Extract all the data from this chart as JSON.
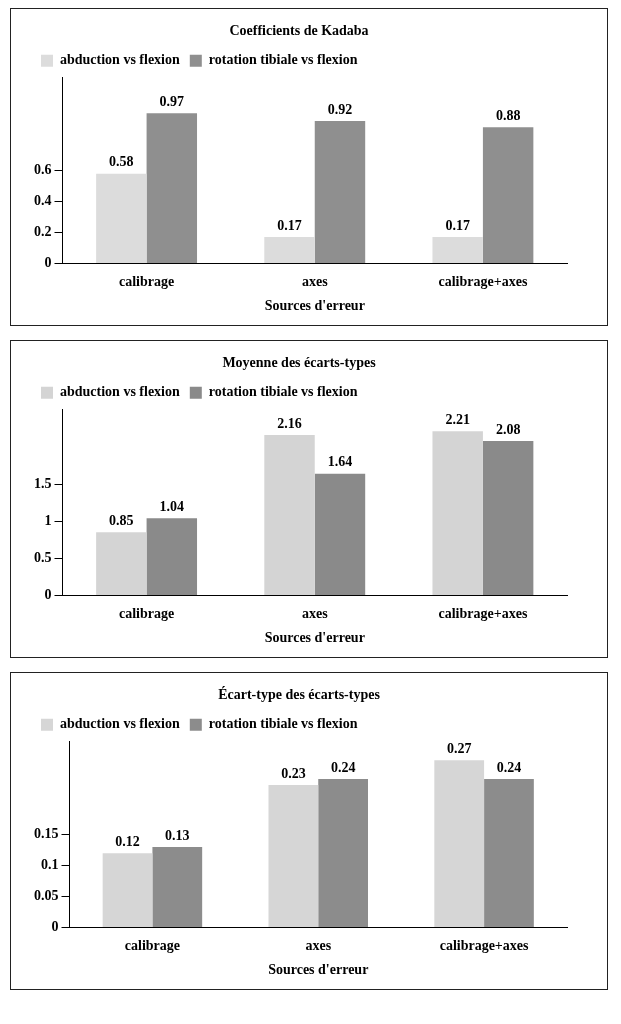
{
  "chart_data": [
    {
      "type": "bar",
      "title": "Coefficients de Kadaba",
      "xlabel": "Sources d'erreur",
      "categories": [
        "calibrage",
        "axes",
        "calibrage+axes"
      ],
      "series": [
        {
          "name": "abduction vs flexion",
          "color": "#dcdcdc",
          "values": [
            0.58,
            0.17,
            0.17
          ]
        },
        {
          "name": "rotation tibiale vs flexion",
          "color": "#8f8f8f",
          "values": [
            0.97,
            0.92,
            0.88
          ]
        }
      ],
      "ylim": [
        0,
        1.2
      ],
      "yticks": [
        0,
        0.2,
        0.4,
        0.6
      ],
      "data_labels": true,
      "grid": false,
      "legend": "top left"
    },
    {
      "type": "bar",
      "title": "Moyenne des écarts-types",
      "xlabel": "Sources d'erreur",
      "categories": [
        "calibrage",
        "axes",
        "calibrage+axes"
      ],
      "series": [
        {
          "name": "abduction vs flexion",
          "color": "#d4d4d4",
          "values": [
            0.85,
            2.16,
            2.21
          ]
        },
        {
          "name": "rotation tibiale vs flexion",
          "color": "#8a8a8a",
          "values": [
            1.04,
            1.64,
            2.08
          ]
        }
      ],
      "ylim": [
        0,
        2.5
      ],
      "yticks": [
        0,
        0.5,
        1,
        1.5
      ],
      "data_labels": true,
      "grid": false,
      "legend": "top left"
    },
    {
      "type": "bar",
      "title": "Écart-type des écarts-types",
      "xlabel": "Sources d'erreur",
      "categories": [
        "calibrage",
        "axes",
        "calibrage+axes"
      ],
      "series": [
        {
          "name": "abduction vs flexion",
          "color": "#d6d6d6",
          "values": [
            0.12,
            0.23,
            0.27
          ]
        },
        {
          "name": "rotation tibiale vs flexion",
          "color": "#8c8c8c",
          "values": [
            0.13,
            0.24,
            0.24
          ]
        }
      ],
      "ylim": [
        0,
        0.3
      ],
      "yticks": [
        0,
        0.05,
        0.1,
        0.15
      ],
      "data_labels": true,
      "grid": false,
      "legend": "top left"
    }
  ]
}
